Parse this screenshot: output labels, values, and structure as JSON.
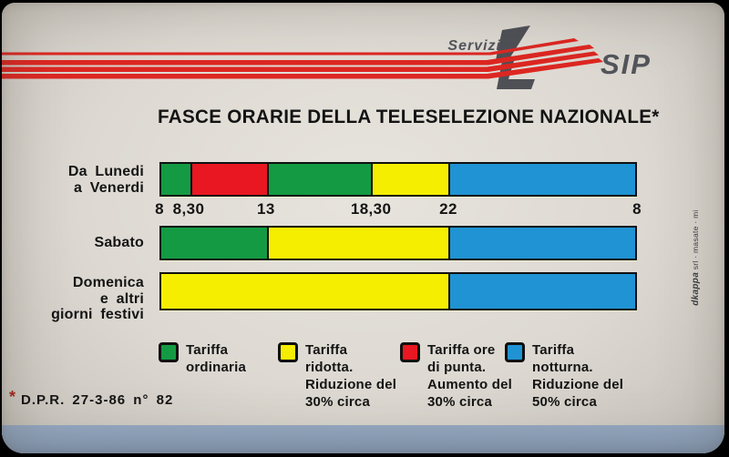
{
  "colors": {
    "green": "#149a43",
    "red": "#e81721",
    "yellow": "#f6ee00",
    "blue": "#1f93d3",
    "stripe_red": "#dd2722",
    "logo_gray": "#53555b",
    "text": "#141414",
    "asterisk_red": "#a8231d",
    "card_bg": "#ddd9d2",
    "bottom_band": "#8fa4bf"
  },
  "header": {
    "servizi_label": "Servizi",
    "sip_label": "SIP"
  },
  "title": "FASCE ORARIE DELLA TELESELEZIONE NAZIONALE*",
  "chart_data": {
    "type": "bar",
    "title": "FASCE ORARIE DELLA TELESELEZIONE NAZIONALE*",
    "description": "Fasce orarie tariffarie (timeline dalle ore 8 alle ore 8 del giorno dopo)",
    "x_axis": {
      "unit": "ora",
      "range": [
        "8",
        "8 (giorno successivo)"
      ],
      "ticks": [
        {
          "label": "8",
          "pct": 0
        },
        {
          "label": "8,30",
          "pct": 6.1
        },
        {
          "label": "13",
          "pct": 22.3
        },
        {
          "label": "18,30",
          "pct": 44.3
        },
        {
          "label": "22",
          "pct": 60.5
        },
        {
          "label": "8",
          "pct": 100
        }
      ]
    },
    "rows": [
      {
        "label_lines": [
          "Da Lunedi",
          "a Venerdi"
        ],
        "segments": [
          {
            "tariff": "ordinaria",
            "color": "green",
            "from": "8",
            "to": "8,30",
            "left_pct": 0,
            "width_pct": 6.1
          },
          {
            "tariff": "ore di punta",
            "color": "red",
            "from": "8,30",
            "to": "13",
            "left_pct": 6.1,
            "width_pct": 16.2
          },
          {
            "tariff": "ordinaria",
            "color": "green",
            "from": "13",
            "to": "18,30",
            "left_pct": 22.3,
            "width_pct": 22.0
          },
          {
            "tariff": "ridotta",
            "color": "yellow",
            "from": "18,30",
            "to": "22",
            "left_pct": 44.3,
            "width_pct": 16.2
          },
          {
            "tariff": "notturna",
            "color": "blue",
            "from": "22",
            "to": "8",
            "left_pct": 60.5,
            "width_pct": 39.5
          }
        ]
      },
      {
        "label_lines": [
          "Sabato"
        ],
        "segments": [
          {
            "tariff": "ordinaria",
            "color": "green",
            "from": "8",
            "to": "13",
            "left_pct": 0,
            "width_pct": 22.3
          },
          {
            "tariff": "ridotta",
            "color": "yellow",
            "from": "13",
            "to": "22",
            "left_pct": 22.3,
            "width_pct": 38.2
          },
          {
            "tariff": "notturna",
            "color": "blue",
            "from": "22",
            "to": "8",
            "left_pct": 60.5,
            "width_pct": 39.5
          }
        ]
      },
      {
        "label_lines": [
          "Domenica",
          "e altri",
          "giorni festivi"
        ],
        "segments": [
          {
            "tariff": "ridotta",
            "color": "yellow",
            "from": "8",
            "to": "22",
            "left_pct": 0,
            "width_pct": 60.5
          },
          {
            "tariff": "notturna",
            "color": "blue",
            "from": "22",
            "to": "8",
            "left_pct": 60.5,
            "width_pct": 39.5
          }
        ]
      }
    ],
    "legend_position": "bottom",
    "grid": false
  },
  "legend": [
    {
      "color": "green",
      "lines": [
        "Tariffa",
        "ordinaria"
      ]
    },
    {
      "color": "yellow",
      "lines": [
        "Tariffa",
        "ridotta.",
        "Riduzione del",
        "30% circa"
      ]
    },
    {
      "color": "red",
      "lines": [
        "Tariffa ore",
        "di punta.",
        "Aumento del",
        "30% circa"
      ]
    },
    {
      "color": "blue",
      "lines": [
        "Tariffa",
        "notturna.",
        "Riduzione del",
        "50% circa"
      ]
    }
  ],
  "footnote": {
    "asterisk": "*",
    "text": "D.P.R. 27-3-86 n° 82"
  },
  "credit": {
    "brand": "dkappa",
    "rest": " srl · masate · mi"
  }
}
